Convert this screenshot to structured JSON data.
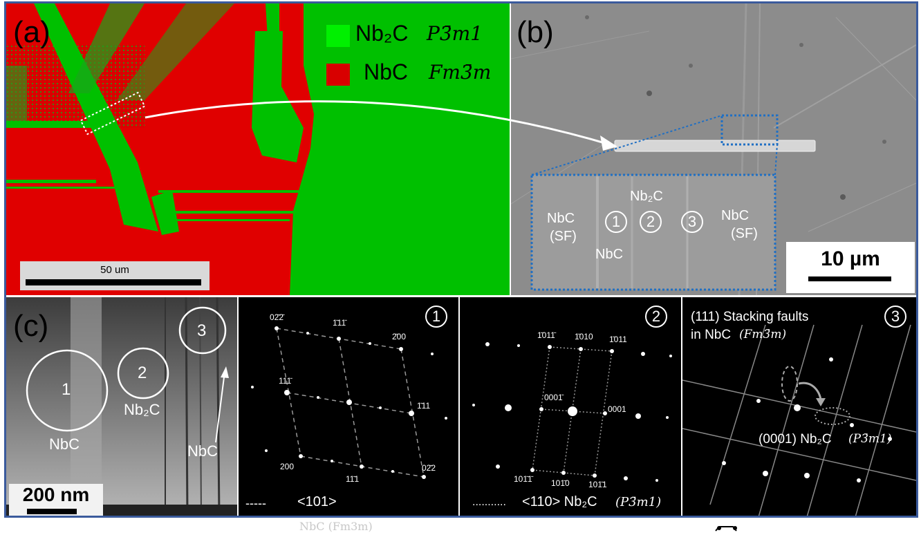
{
  "panel_a": {
    "letter": "(a)",
    "legend": [
      {
        "phase": "Nb₂C",
        "space_group": "P3̄m1",
        "color": "#00c800"
      },
      {
        "phase": "NbC",
        "space_group": "Fm3̄m",
        "color": "#e00000"
      }
    ],
    "scalebar": "50 um"
  },
  "panel_b": {
    "letter": "(b)",
    "labels": {
      "nbc_sf_left_1": "NbC",
      "nbc_sf_left_2": "(SF)",
      "nbc_mid": "NbC",
      "nb2c": "Nb₂C",
      "nbc_sf_right_1": "NbC",
      "nbc_sf_right_2": "(SF)",
      "c1": "1",
      "c2": "2",
      "c3": "3"
    },
    "scalebar": "10 µm"
  },
  "panel_c": {
    "letter": "(c)",
    "regions": {
      "r1": "1",
      "r2": "2",
      "r3": "3"
    },
    "labels": {
      "nbc_left": "NbC",
      "nb2c": "Nb₂C",
      "nbc_right": "NbC"
    },
    "scalebar": "200 nm"
  },
  "diffraction_1": {
    "number": "1",
    "indices": {
      "a": "02̄2̄",
      "b": "1̄11̄",
      "c": "2̄00",
      "d": "111̄",
      "e": "1̄11",
      "f": "200",
      "g": "11̄1",
      "h": "02̄2"
    },
    "legend": "<101>",
    "legend_prefix": "-----"
  },
  "diffraction_2": {
    "number": "2",
    "indices": {
      "a": "1̄011̄",
      "b": "1̄010",
      "c": "1̄011",
      "d": "0001̄",
      "e": "0001",
      "f": "101̄1̄",
      "g": "101̄0",
      "h": "101̄1"
    },
    "legend": "<110> Nb₂C",
    "legend_sg": "(P3̄m1)",
    "legend_prefix": "..........."
  },
  "diffraction_3": {
    "number": "3",
    "title_1": "(111) Stacking faults",
    "title_2": "in NbC",
    "title_sg": "(Fm3̄m)",
    "bottom": "(0001) Nb₂C",
    "bottom_sg": "(P3̄m1)"
  },
  "footer": {
    "caption": "NbC (Fm3m)"
  }
}
